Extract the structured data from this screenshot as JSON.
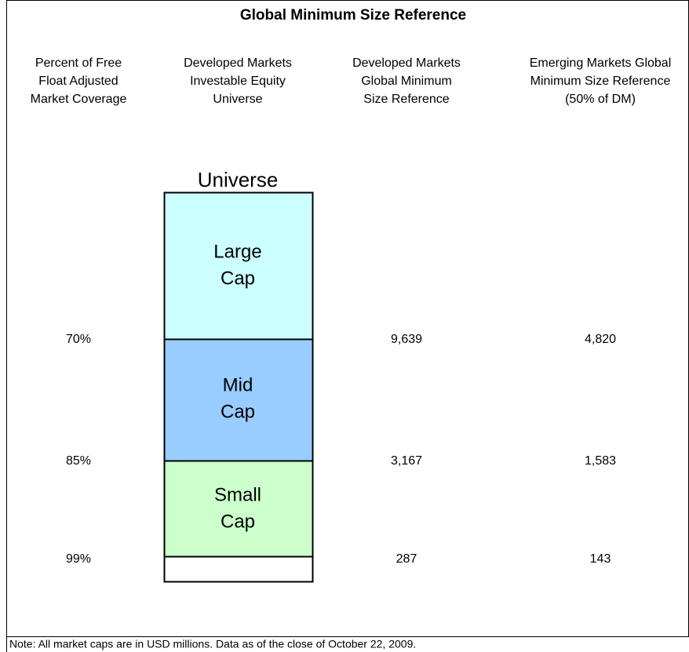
{
  "title": "Global Minimum Size Reference",
  "headers": [
    [
      "Percent of Free",
      "Float Adjusted",
      "Market Coverage"
    ],
    [
      "Developed Markets",
      "Investable Equity",
      "Universe"
    ],
    [
      "Developed Markets",
      "Global Minimum",
      "Size Reference"
    ],
    [
      "Emerging Markets Global",
      "Minimum Size Reference",
      "(50% of DM)"
    ]
  ],
  "universe_label": "Universe",
  "segments": [
    [
      "Large",
      "Cap"
    ],
    [
      "Mid",
      "Cap"
    ],
    [
      "Small",
      "Cap"
    ]
  ],
  "rows": [
    [
      "70%",
      "9,639",
      "4,820"
    ],
    [
      "85%",
      "3,167",
      "1,583"
    ],
    [
      "99%",
      "287",
      "143"
    ]
  ],
  "note": "Note: All market caps are in USD millions. Data as of the close of October 22, 2009."
}
